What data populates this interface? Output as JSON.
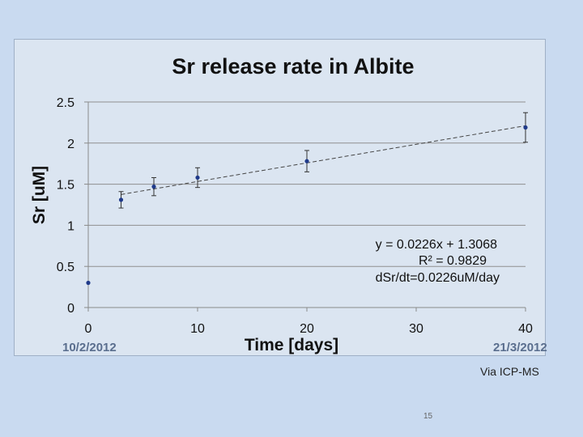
{
  "chart_data": {
    "type": "scatter",
    "title": "Sr release rate in Albite",
    "xlabel": "Time [days]",
    "ylabel": "Sr [uM]",
    "xlim": [
      0,
      40
    ],
    "ylim": [
      0,
      2.5
    ],
    "xticks": [
      "0",
      "10",
      "20",
      "30",
      "40"
    ],
    "yticks": [
      "0",
      "0.5",
      "1",
      "1.5",
      "2",
      "2.5"
    ],
    "grid": true,
    "series": [
      {
        "color": "#1f3a8a",
        "points": [
          {
            "x": 0,
            "y": 0.3,
            "err": 0
          },
          {
            "x": 3,
            "y": 1.31,
            "err": 0.1
          },
          {
            "x": 6,
            "y": 1.47,
            "err": 0.11
          },
          {
            "x": 10,
            "y": 1.58,
            "err": 0.12
          },
          {
            "x": 20,
            "y": 1.78,
            "err": 0.13
          },
          {
            "x": 40,
            "y": 2.19,
            "err": 0.18
          }
        ]
      }
    ],
    "trendline": {
      "slope": 0.0226,
      "intercept": 1.3068,
      "x_range": [
        3,
        40
      ],
      "style": "dashed"
    },
    "annotations": [
      "y = 0.0226x + 1.3068",
      "R² = 0.9829",
      "dSr/dt=0.0226uM/day"
    ]
  },
  "notes": {
    "date_start": "10/2/2012",
    "date_end": "21/3/2012",
    "method": "Via ICP-MS"
  },
  "slide_number": "15"
}
